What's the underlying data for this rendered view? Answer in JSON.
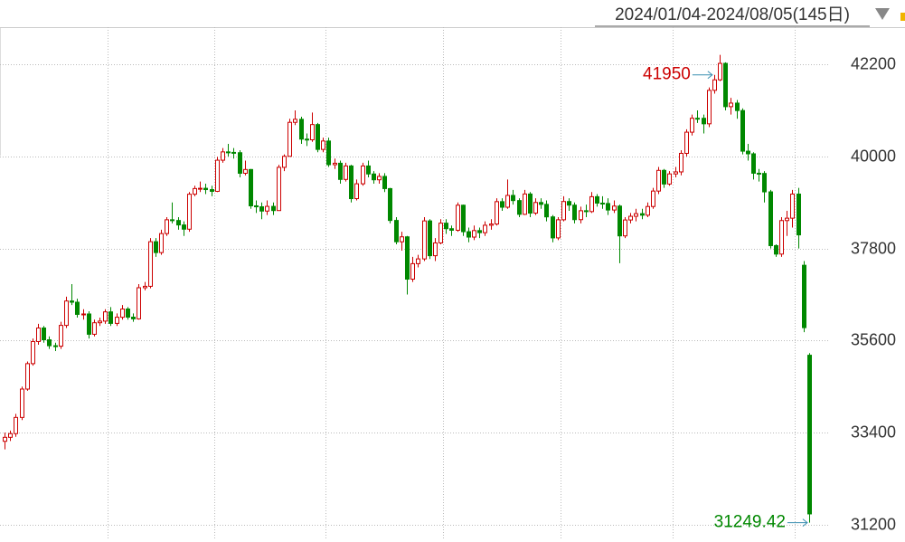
{
  "chart_data": {
    "type": "candlestick",
    "title": "2024/01/04-2024/08/05(145日)",
    "ylim": [
      30830,
      43090
    ],
    "yticks": [
      31200,
      33400,
      35600,
      37800,
      40000,
      42200
    ],
    "grid": true,
    "xgrid": [
      19,
      38,
      58,
      79,
      100,
      120,
      142
    ],
    "up_color": "#cc0000",
    "down_color": "#008800",
    "open": [
      33193,
      33288,
      33377,
      33763,
      34441,
      35049,
      35577,
      35901,
      35619,
      35477,
      35466,
      35963,
      36546,
      36517,
      36226,
      36236,
      35751,
      36026,
      36065,
      36286,
      36011,
      36158,
      36354,
      36160,
      36119,
      36863,
      36897,
      37963,
      37703,
      38157,
      38487,
      38470,
      38363,
      38262,
      39098,
      39233,
      39239,
      39208,
      39166,
      39910,
      40109,
      40097,
      40090,
      39598,
      39688,
      38820,
      38797,
      38695,
      38807,
      38707,
      39740,
      40003,
      40815,
      40888,
      40414,
      40398,
      40762,
      40168,
      40369,
      39803,
      39838,
      39451,
      39773,
      38992,
      39347,
      39773,
      39581,
      39442,
      39523,
      39232,
      38471,
      37961,
      38079,
      37068,
      37438,
      37552,
      38460,
      37628,
      37934,
      38406,
      38274,
      38236,
      38835,
      38202,
      38073,
      38229,
      38179,
      38356,
      38385,
      38920,
      38787,
      39069,
      38946,
      38617,
      39103,
      38646,
      38900,
      38855,
      38556,
      38054,
      38487,
      38923,
      38837,
      38490,
      38703,
      38683,
      39038,
      38885,
      38876,
      38720,
      38814,
      38102,
      38482,
      38570,
      38633,
      38596,
      38804,
      39173,
      39667,
      39341,
      39583,
      39631,
      40074,
      40580,
      40913,
      40912,
      40780,
      41580,
      41831,
      42224,
      41190,
      41275,
      41097,
      40126,
      40063,
      39599,
      39594,
      39154,
      37869,
      37667,
      38468,
      38525,
      39101,
      37400,
      35250
    ],
    "high": [
      33400,
      33450,
      33850,
      34500,
      35100,
      35650,
      36000,
      35950,
      35700,
      35550,
      36050,
      36650,
      36950,
      36600,
      36350,
      36300,
      36100,
      36150,
      36350,
      36400,
      36250,
      36450,
      36400,
      36250,
      36950,
      37000,
      38050,
      38050,
      38250,
      38550,
      38900,
      38550,
      38450,
      39150,
      39300,
      39400,
      39350,
      39300,
      39990,
      40200,
      40300,
      40200,
      40150,
      39900,
      39700,
      38950,
      38900,
      38950,
      38900,
      39800,
      40050,
      40900,
      41100,
      40950,
      40550,
      41050,
      40800,
      40450,
      40450,
      39950,
      39900,
      39850,
      39800,
      39450,
      39850,
      39900,
      39650,
      39600,
      39600,
      39250,
      38550,
      38200,
      38100,
      37600,
      37650,
      38550,
      38500,
      38050,
      38500,
      38500,
      38350,
      38900,
      38850,
      38300,
      38350,
      38300,
      38450,
      38500,
      39000,
      39000,
      39450,
      39200,
      39000,
      39200,
      39150,
      39000,
      39000,
      38950,
      38600,
      38550,
      39050,
      39000,
      38900,
      38800,
      38850,
      39150,
      39100,
      39050,
      39000,
      38950,
      38850,
      38550,
      38650,
      38750,
      38750,
      38900,
      39250,
      39750,
      39700,
      39650,
      39750,
      40150,
      40650,
      41000,
      41100,
      41000,
      41650,
      41950,
      42426.77,
      42250,
      41400,
      41350,
      41150,
      40300,
      40100,
      39700,
      39650,
      39200,
      37900,
      38550,
      38700,
      39200,
      39250,
      37500,
      35300
    ],
    "low": [
      33000,
      33200,
      33300,
      33700,
      34400,
      35000,
      35500,
      35550,
      35400,
      35350,
      35400,
      35900,
      36450,
      36150,
      36100,
      35650,
      35700,
      35950,
      36000,
      35950,
      35950,
      36100,
      36100,
      36050,
      36100,
      36800,
      36850,
      37600,
      37650,
      38100,
      38400,
      38250,
      38100,
      38200,
      39050,
      39150,
      39100,
      39050,
      39150,
      39850,
      40000,
      39950,
      39500,
      39550,
      38750,
      38650,
      38500,
      38600,
      38600,
      38700,
      39650,
      40000,
      40750,
      40300,
      40250,
      40350,
      40100,
      40100,
      39750,
      39700,
      39350,
      39400,
      38900,
      38950,
      39300,
      39500,
      39350,
      39350,
      39150,
      38400,
      37900,
      37750,
      36700,
      37000,
      37350,
      37500,
      37550,
      37500,
      37900,
      38150,
      38100,
      38200,
      38100,
      37950,
      38000,
      38050,
      38100,
      38250,
      38350,
      38700,
      38750,
      38850,
      38550,
      38600,
      38550,
      38600,
      38750,
      38450,
      37950,
      38000,
      38450,
      38700,
      38400,
      38400,
      38550,
      38650,
      38800,
      38750,
      38600,
      38650,
      37450,
      38050,
      38400,
      38450,
      38500,
      38550,
      38750,
      39100,
      39250,
      39300,
      39500,
      39550,
      40000,
      40500,
      40800,
      40550,
      40700,
      41500,
      41800,
      41100,
      41000,
      40900,
      40050,
      39900,
      39450,
      39400,
      38900,
      37800,
      37600,
      37600,
      38100,
      38300,
      37800,
      35800,
      31249.42
    ],
    "close": [
      33288,
      33377,
      33763,
      34441,
      35049,
      35577,
      35901,
      35619,
      35477,
      35466,
      35963,
      36546,
      36517,
      36226,
      36236,
      35751,
      36026,
      36065,
      36286,
      36011,
      36158,
      36354,
      36160,
      36119,
      36863,
      36897,
      37963,
      37703,
      38157,
      38487,
      38470,
      38363,
      38262,
      39098,
      39233,
      39239,
      39208,
      39166,
      39910,
      40109,
      40097,
      40090,
      39598,
      39688,
      38820,
      38797,
      38695,
      38807,
      38707,
      39740,
      40003,
      40815,
      40888,
      40414,
      40398,
      40762,
      40168,
      40369,
      39803,
      39838,
      39451,
      39773,
      38992,
      39347,
      39773,
      39581,
      39442,
      39523,
      39232,
      38471,
      37961,
      38079,
      37068,
      37438,
      37552,
      38460,
      37628,
      37934,
      38406,
      38274,
      38236,
      38835,
      38202,
      38073,
      38229,
      38179,
      38356,
      38385,
      38920,
      38787,
      39069,
      38946,
      38617,
      39103,
      38646,
      38900,
      38855,
      38556,
      38054,
      38487,
      38923,
      38837,
      38490,
      38703,
      38683,
      39038,
      38885,
      38876,
      38720,
      38814,
      38102,
      38482,
      38570,
      38633,
      38596,
      38804,
      39173,
      39667,
      39341,
      39583,
      39631,
      40074,
      40580,
      40913,
      40912,
      40780,
      41580,
      41831,
      42224,
      41190,
      41275,
      41097,
      40126,
      40063,
      39599,
      39594,
      39154,
      37869,
      37667,
      38468,
      38525,
      39101,
      38126,
      35909,
      31458
    ],
    "annotations": [
      {
        "index": 127,
        "field": "high"
      },
      {
        "index": 144,
        "field": "low"
      }
    ]
  }
}
